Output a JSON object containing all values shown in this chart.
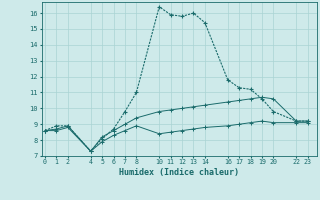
{
  "xlabel": "Humidex (Indice chaleur)",
  "bg_color": "#ceeaea",
  "grid_color": "#aad4d4",
  "line_color": "#1a6b6b",
  "series1_x": [
    0,
    1,
    2,
    4,
    5,
    6,
    7,
    8,
    10,
    11,
    12,
    13,
    14,
    16,
    17,
    18,
    19,
    20,
    22,
    23
  ],
  "series1_y": [
    8.6,
    8.9,
    8.9,
    7.3,
    8.1,
    8.7,
    9.8,
    11.0,
    16.4,
    15.9,
    15.8,
    16.0,
    15.4,
    11.8,
    11.3,
    11.2,
    10.6,
    9.8,
    9.2,
    9.2
  ],
  "series2_x": [
    0,
    1,
    2,
    4,
    5,
    6,
    7,
    8,
    10,
    11,
    12,
    13,
    14,
    16,
    17,
    18,
    19,
    20,
    22,
    23
  ],
  "series2_y": [
    8.6,
    8.7,
    8.9,
    7.3,
    8.2,
    8.6,
    9.0,
    9.4,
    9.8,
    9.9,
    10.0,
    10.1,
    10.2,
    10.4,
    10.5,
    10.6,
    10.7,
    10.6,
    9.2,
    9.2
  ],
  "series3_x": [
    0,
    1,
    2,
    4,
    5,
    6,
    7,
    8,
    10,
    11,
    12,
    13,
    14,
    16,
    17,
    18,
    19,
    20,
    22,
    23
  ],
  "series3_y": [
    8.6,
    8.6,
    8.8,
    7.3,
    7.9,
    8.3,
    8.6,
    8.9,
    8.4,
    8.5,
    8.6,
    8.7,
    8.8,
    8.9,
    9.0,
    9.1,
    9.2,
    9.1,
    9.1,
    9.1
  ],
  "xlim": [
    -0.3,
    23.8
  ],
  "ylim": [
    7.0,
    16.7
  ],
  "xticks": [
    0,
    1,
    2,
    4,
    5,
    6,
    7,
    8,
    10,
    11,
    12,
    13,
    14,
    16,
    17,
    18,
    19,
    20,
    22,
    23
  ],
  "yticks": [
    7,
    8,
    9,
    10,
    11,
    12,
    13,
    14,
    15,
    16
  ]
}
